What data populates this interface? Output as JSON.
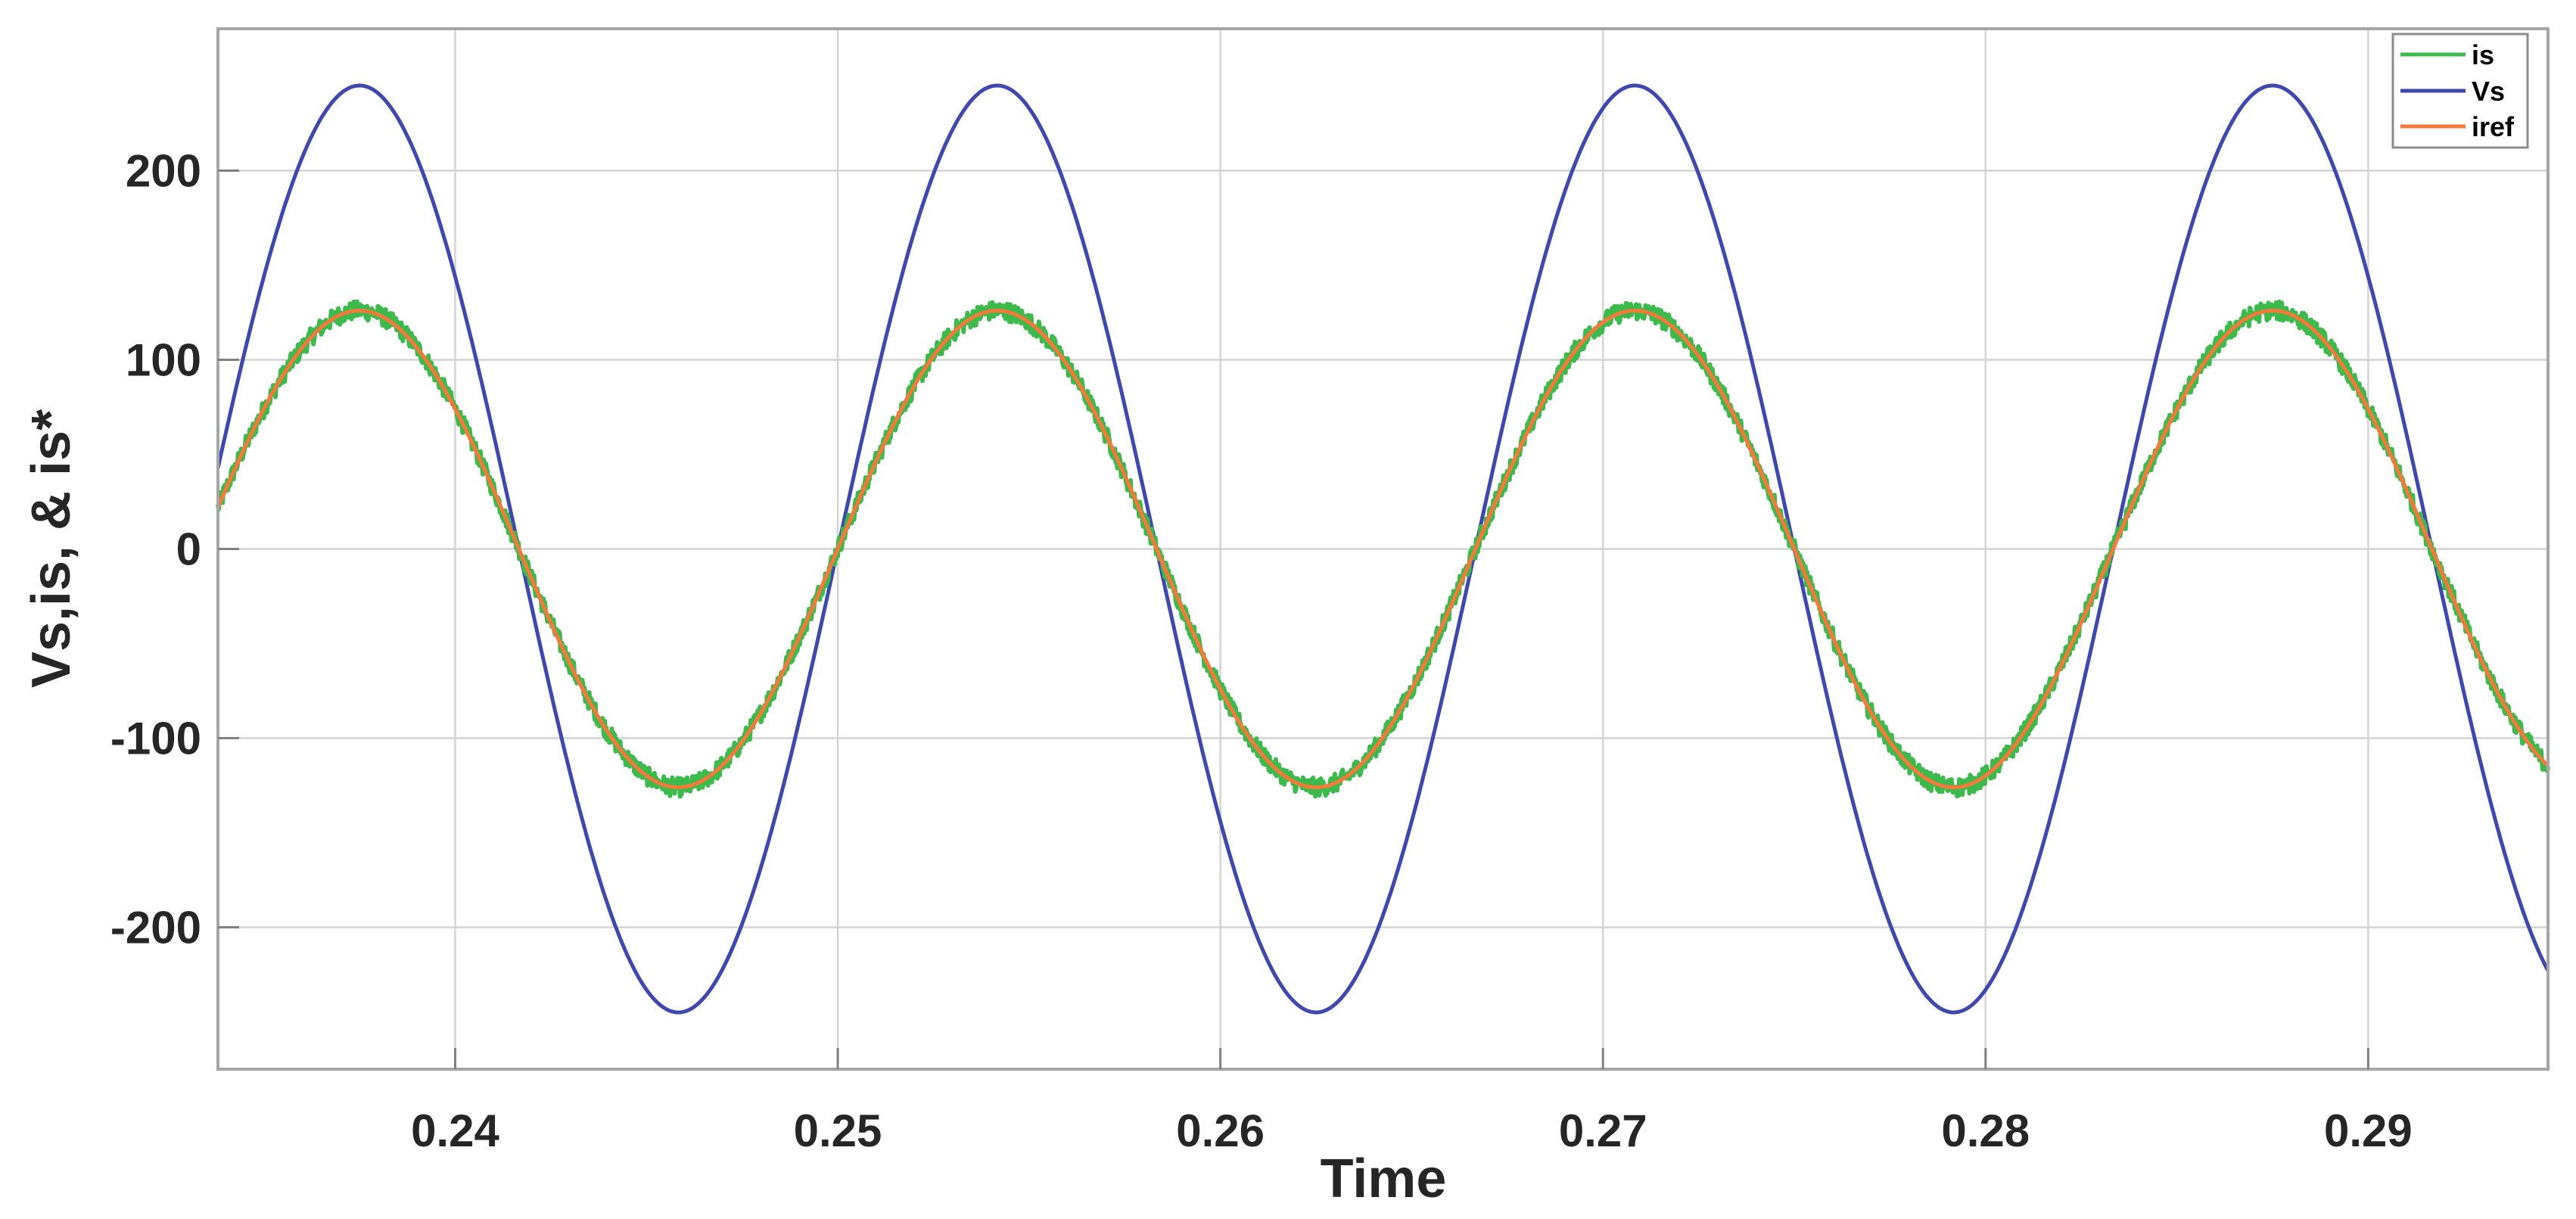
{
  "figure": {
    "xlabel": "Time",
    "ylabel": "Vs,is, & is*",
    "x_ticks": [
      "0.24",
      "0.25",
      "0.26",
      "0.27",
      "0.28",
      "0.29"
    ],
    "y_ticks": [
      "-200",
      "-100",
      "0",
      "100",
      "200"
    ],
    "legend": [
      {
        "label": "is",
        "color": "#3cba4c"
      },
      {
        "label": "Vs",
        "color": "#3f48ad"
      },
      {
        "label": "iref",
        "color": "#f47a3c"
      }
    ]
  },
  "chart_data": {
    "type": "line",
    "title": "",
    "xlabel": "Time",
    "ylabel": "Vs,is, & is*",
    "xlim": [
      0.2338,
      0.2947
    ],
    "ylim": [
      -275,
      275
    ],
    "x_ticks": [
      0.24,
      0.25,
      0.26,
      0.27,
      0.28,
      0.29
    ],
    "y_ticks": [
      -200,
      -100,
      0,
      100,
      200
    ],
    "grid": true,
    "legend_position": "upper right",
    "frequency_hz": 60,
    "x": [
      0.2338,
      0.2375,
      0.2417,
      0.2458,
      0.25,
      0.2542,
      0.2583,
      0.2625,
      0.2667,
      0.2708,
      0.275,
      0.2792,
      0.2833,
      0.2875,
      0.2917,
      0.2947
    ],
    "series": [
      {
        "name": "is",
        "color": "#3cba4c",
        "description": "Source current tracking iref with small high-frequency switching ripple (about +/-5)",
        "amplitude": 126,
        "values": [
          23,
          126,
          0,
          -126,
          0,
          126,
          0,
          -126,
          0,
          126,
          0,
          -126,
          0,
          126,
          0,
          -117
        ]
      },
      {
        "name": "Vs",
        "color": "#3f48ad",
        "description": "Source voltage, in phase with current",
        "amplitude": 245,
        "values": [
          44,
          245,
          0,
          -245,
          0,
          245,
          0,
          -245,
          0,
          245,
          0,
          -245,
          0,
          245,
          0,
          -223
        ]
      },
      {
        "name": "iref",
        "color": "#f47a3c",
        "description": "Reference source current, clean sinusoid",
        "amplitude": 126,
        "values": [
          23,
          126,
          0,
          -126,
          0,
          126,
          0,
          -126,
          0,
          126,
          0,
          -126,
          0,
          126,
          0,
          -115
        ]
      }
    ]
  }
}
